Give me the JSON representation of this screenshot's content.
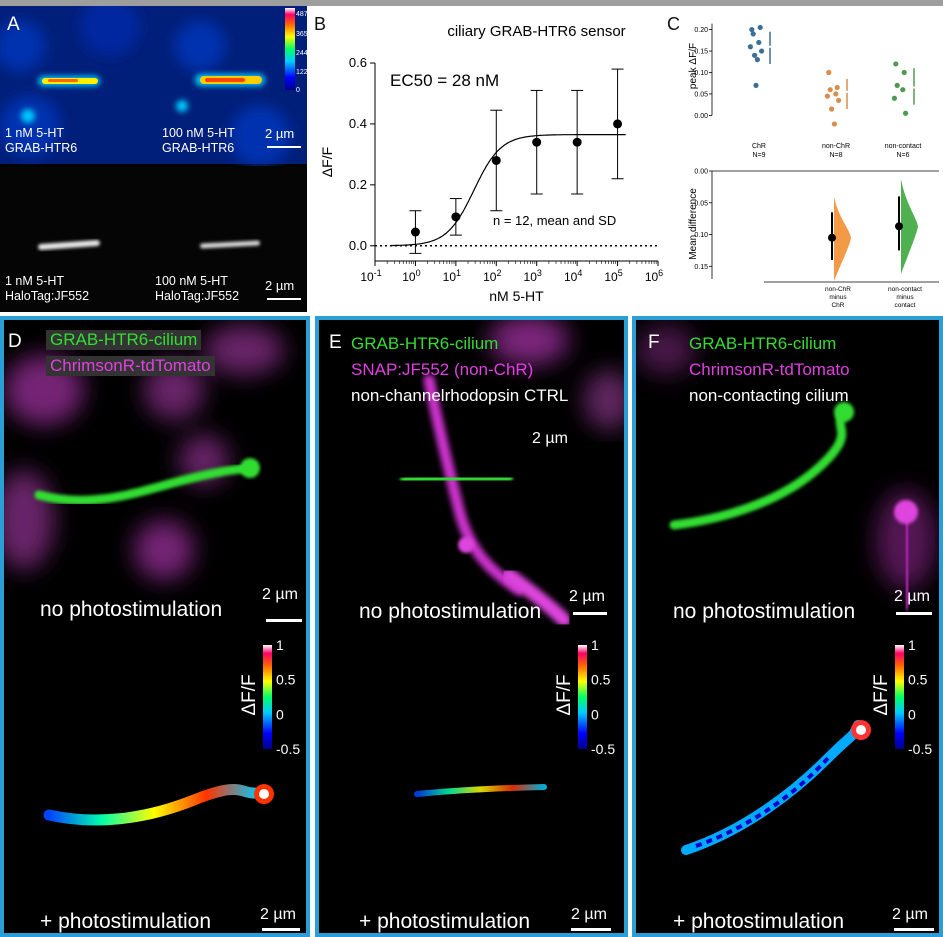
{
  "panels": {
    "A": {
      "letter": "A",
      "labels": [
        {
          "line1": "1 nM 5-HT",
          "line2": "GRAB-HTR6"
        },
        {
          "line1": "100 nM 5-HT",
          "line2": "GRAB-HTR6"
        },
        {
          "line1": "1 nM 5-HT",
          "line2": "HaloTag:JF552"
        },
        {
          "line1": "100 nM 5-HT",
          "line2": "HaloTag:JF552"
        }
      ],
      "scalebar": "2 µm",
      "colorbar_ticks": [
        "487",
        "365",
        "244",
        "122",
        "0"
      ]
    },
    "B": {
      "letter": "B",
      "annotation_ec50": "EC50 = 28 nM",
      "annotation_n": "n = 12, mean and SD"
    },
    "C": {
      "letter": "C"
    },
    "D": {
      "letter": "D",
      "channels": [
        "GRAB-HTR6-cilium",
        "ChrimsonR-tdTomato"
      ],
      "top_caption": "no photostimulation",
      "bottom_caption": "+ photostimulation",
      "scalebar": "2 µm"
    },
    "E": {
      "letter": "E",
      "channels": [
        "GRAB-HTR6-cilium",
        "SNAP:JF552 (non-ChR)",
        "non-channelrhodopsin CTRL"
      ],
      "inline_scale": "2 µm",
      "top_caption": "no photostimulation",
      "bottom_caption": "+ photostimulation",
      "scalebar": "2 µm"
    },
    "F": {
      "letter": "F",
      "channels": [
        "GRAB-HTR6-cilium",
        "ChrimsonR-tdTomato",
        "non-contacting cilium"
      ],
      "top_caption": "no photostimulation",
      "bottom_caption": "+ photostimulation",
      "scalebar": "2 µm"
    },
    "dff_colorbar": {
      "label": "ΔF/F",
      "ticks": [
        "1",
        "0.5",
        "0",
        "-0.5"
      ]
    }
  },
  "chart_data": [
    {
      "type": "scatter",
      "title": "ciliary GRAB-HTR6 sensor",
      "xlabel": "nM 5-HT",
      "ylabel": "ΔF/F",
      "xscale": "log",
      "xlim": [
        0.1,
        1000000
      ],
      "ylim": [
        -0.05,
        0.6
      ],
      "xticks": [
        "10-1",
        "100",
        "101",
        "102",
        "103",
        "104",
        "105",
        "106"
      ],
      "yticks": [
        "0.0",
        "0.2",
        "0.4",
        "0.6"
      ],
      "x": [
        1,
        10,
        100,
        1000,
        10000,
        100000
      ],
      "y": [
        0.045,
        0.095,
        0.28,
        0.34,
        0.34,
        0.4
      ],
      "sd": [
        0.07,
        0.06,
        0.165,
        0.17,
        0.17,
        0.18
      ],
      "fit": {
        "ec50": 28,
        "bottom": 0.0,
        "top": 0.365,
        "hill": 1.3
      },
      "reference_line_y": 0
    },
    {
      "type": "scatter",
      "ylabel": "peak ΔF/F",
      "ylim": [
        -0.02,
        0.22
      ],
      "yticks": [
        "0.00",
        "0.05",
        "0.10",
        "0.15",
        "0.20"
      ],
      "groups": [
        {
          "name": "ChR",
          "n_label": "N=9",
          "color": "#3d6f96",
          "values": [
            0.2,
            0.205,
            0.19,
            0.17,
            0.16,
            0.15,
            0.14,
            0.13,
            0.07
          ],
          "mean": 0.16,
          "sd_low": 0.12,
          "sd_high": 0.195
        },
        {
          "name": "non-ChR",
          "n_label": "N=8",
          "color": "#d98e4b",
          "values": [
            0.1,
            0.065,
            0.06,
            0.05,
            0.045,
            0.035,
            0.015,
            -0.02
          ],
          "mean": 0.055,
          "sd_low": 0.015,
          "sd_high": 0.085
        },
        {
          "name": "non-contact",
          "n_label": "N=6",
          "color": "#4f9a52",
          "values": [
            0.12,
            0.1,
            0.07,
            0.06,
            0.04,
            0.005
          ],
          "mean": 0.065,
          "sd_low": 0.025,
          "sd_high": 0.11
        }
      ]
    },
    {
      "type": "scatter",
      "ylabel": "Mean difference",
      "ylim": [
        0.0,
        0.17
      ],
      "yticks": [
        "0.00",
        "0.05",
        "0.10",
        "0.15"
      ],
      "inverted": true,
      "comparisons": [
        {
          "label": [
            "non-ChR",
            "minus",
            "ChR"
          ],
          "color": "#f29a45",
          "mean": 0.105,
          "ci": [
            0.065,
            0.14
          ]
        },
        {
          "label": [
            "non-contact",
            "minus",
            "contact"
          ],
          "color": "#4fb04f",
          "mean": 0.087,
          "ci": [
            0.04,
            0.125
          ]
        }
      ]
    }
  ],
  "colors": {
    "frame": "#2a9fd6",
    "green": "#33dd33",
    "magenta": "#e040e0",
    "white": "#ffffff"
  }
}
